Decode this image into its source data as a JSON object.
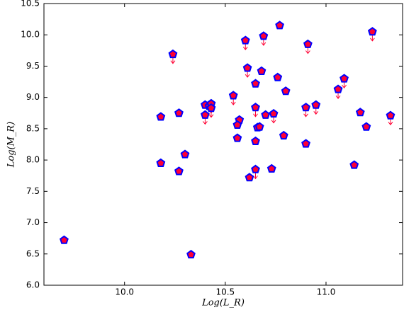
{
  "chart_data": {
    "type": "scatter",
    "xlabel": "Log(L_R)",
    "ylabel": "Log(M_R)",
    "xlim": [
      9.6,
      11.38
    ],
    "ylim": [
      6.0,
      10.5
    ],
    "xticks": [
      {
        "value": 10.0,
        "label": "10.0"
      },
      10.5,
      {
        "value": 11.0,
        "label": "11.0"
      }
    ],
    "yticks": [
      {
        "value": 6.0,
        "label": "6.0"
      },
      6.5,
      {
        "value": 7.0,
        "label": "7.0"
      },
      7.5,
      {
        "value": 8.0,
        "label": "8.0"
      },
      8.5,
      {
        "value": 9.0,
        "label": "9.0"
      },
      9.5,
      {
        "value": 10.0,
        "label": "10.0"
      },
      10.5
    ],
    "marker_face": "#ff0033",
    "marker_edge": "#0000ff",
    "arrow_color": "#ff0033",
    "series": [
      {
        "x": [
          9.7,
          10.33,
          10.18,
          10.18,
          10.24,
          10.27,
          10.27,
          10.3,
          10.4,
          10.4,
          10.42,
          10.43,
          10.43,
          10.54,
          10.6,
          10.61,
          10.57,
          10.56,
          10.56,
          10.65,
          10.65,
          10.68,
          10.69,
          10.7,
          10.66,
          10.67,
          10.65,
          10.65,
          10.62,
          10.73,
          10.74,
          10.76,
          10.77,
          10.8,
          10.79,
          10.91,
          10.9,
          10.9,
          10.95,
          11.06,
          11.09,
          11.14,
          11.17,
          11.2,
          11.23,
          11.32
        ],
        "values": [
          6.72,
          6.49,
          8.69,
          7.95,
          9.69,
          8.75,
          7.82,
          8.09,
          8.88,
          8.72,
          8.86,
          8.9,
          8.83,
          9.03,
          9.91,
          9.47,
          8.64,
          8.56,
          8.35,
          9.22,
          8.84,
          9.42,
          9.98,
          8.72,
          8.52,
          8.53,
          8.3,
          7.85,
          7.72,
          7.86,
          8.74,
          9.32,
          10.15,
          9.1,
          8.39,
          9.85,
          8.84,
          8.26,
          8.88,
          9.13,
          9.3,
          7.92,
          8.76,
          8.53,
          10.05,
          8.71
        ],
        "upper_limit": [
          false,
          false,
          false,
          false,
          true,
          false,
          false,
          false,
          false,
          true,
          false,
          true,
          true,
          true,
          true,
          true,
          false,
          false,
          false,
          false,
          true,
          false,
          true,
          false,
          false,
          false,
          false,
          true,
          false,
          false,
          true,
          false,
          false,
          false,
          false,
          true,
          true,
          false,
          true,
          true,
          true,
          false,
          false,
          false,
          true,
          true
        ]
      }
    ]
  }
}
